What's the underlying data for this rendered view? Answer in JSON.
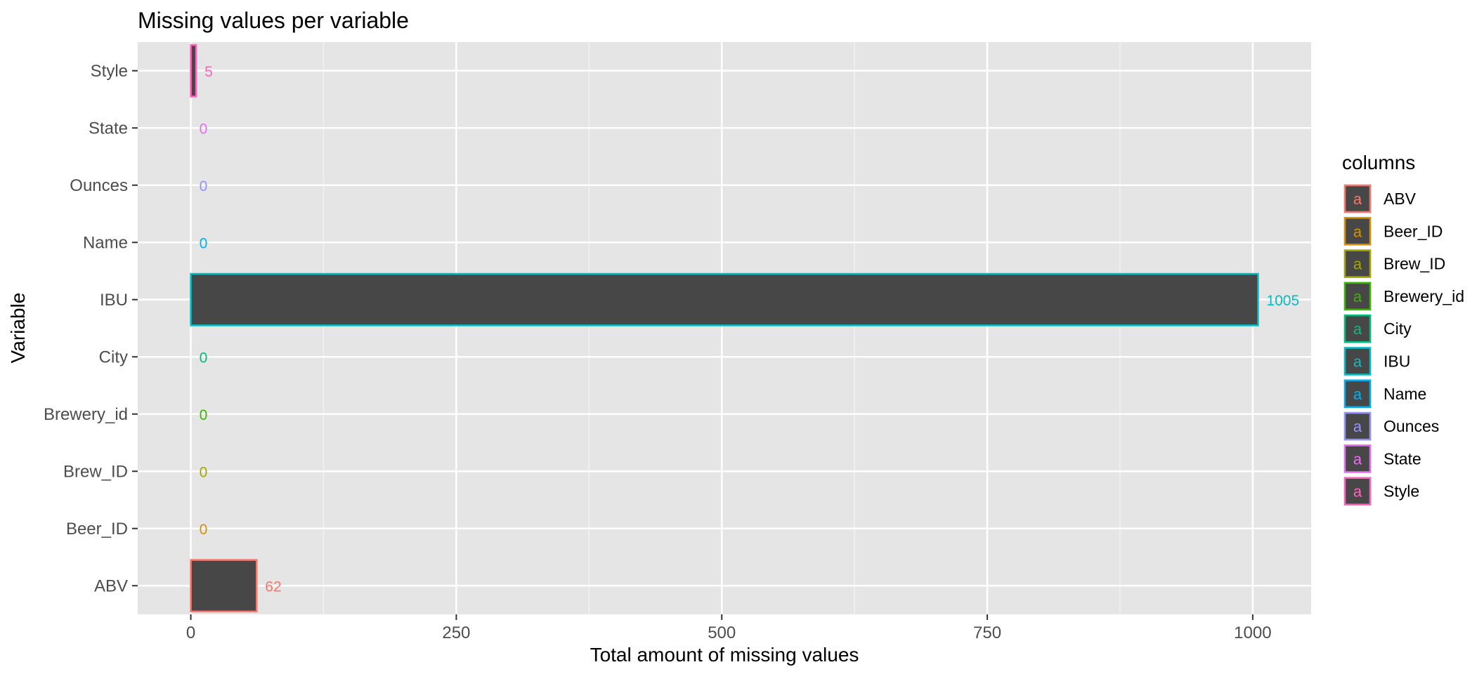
{
  "chart_data": {
    "type": "bar",
    "orientation": "horizontal",
    "title": "Missing values per variable",
    "xlabel": "Total amount of missing values",
    "ylabel": "Variable",
    "xlim": [
      -50,
      1055
    ],
    "x_ticks": [
      0,
      250,
      500,
      750,
      1000
    ],
    "x_tick_labels": [
      "0",
      "250",
      "500",
      "750",
      "1000"
    ],
    "categories": [
      "ABV",
      "Beer_ID",
      "Brew_ID",
      "Brewery_id",
      "City",
      "IBU",
      "Name",
      "Ounces",
      "State",
      "Style"
    ],
    "values": [
      62,
      0,
      0,
      0,
      0,
      1005,
      0,
      0,
      0,
      5
    ],
    "value_labels": [
      "62",
      "0",
      "0",
      "0",
      "0",
      "1005",
      "0",
      "0",
      "0",
      "5"
    ],
    "bar_fill": "#474747",
    "panel_background": "#e5e5e5",
    "grid": true,
    "legend": {
      "title": "columns",
      "placement": "right",
      "key_letter": "a",
      "entries": [
        "ABV",
        "Beer_ID",
        "Brew_ID",
        "Brewery_id",
        "City",
        "IBU",
        "Name",
        "Ounces",
        "State",
        "Style"
      ]
    },
    "colors": [
      "#F8766D",
      "#D89000",
      "#A3A500",
      "#39B600",
      "#00BF7D",
      "#00BFC4",
      "#00B0F6",
      "#9590FF",
      "#E76BF3",
      "#FF62BC"
    ]
  }
}
